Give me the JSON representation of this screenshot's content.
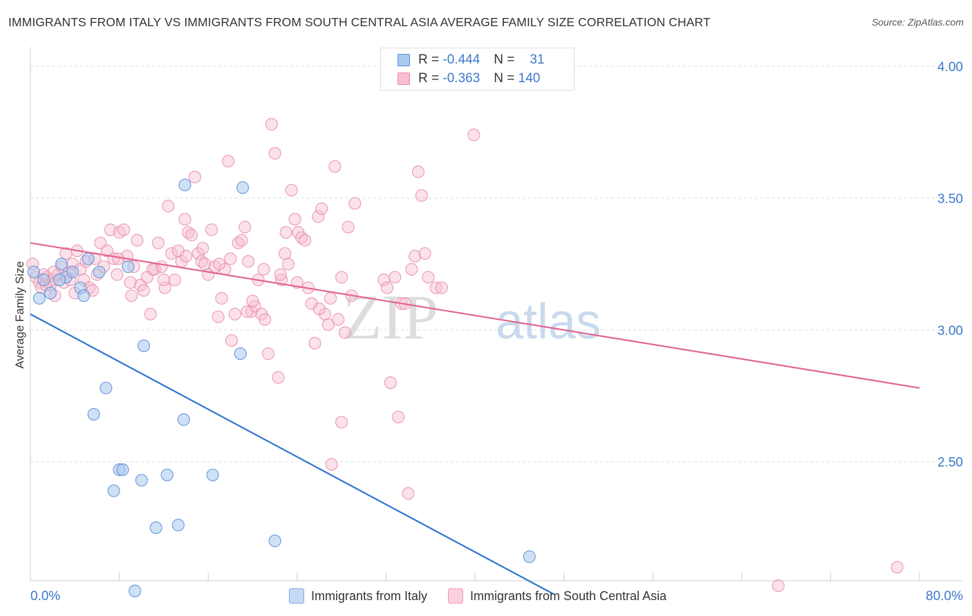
{
  "header": {
    "title": "IMMIGRANTS FROM ITALY VS IMMIGRANTS FROM SOUTH CENTRAL ASIA AVERAGE FAMILY SIZE CORRELATION CHART",
    "source": "Source: ZipAtlas.com"
  },
  "watermark": {
    "zip": "ZIP",
    "atlas": "atlas"
  },
  "legend": {
    "series1": {
      "r_label": "R =",
      "r_value": "-0.444",
      "n_label": "N =",
      "n_value": "31"
    },
    "series2": {
      "r_label": "R =",
      "r_value": "-0.363",
      "n_label": "N =",
      "n_value": "140"
    }
  },
  "colors": {
    "italy_fill": "#a9c8ee",
    "italy_stroke": "#5b8fd6",
    "italy_line": "#2f74d0",
    "asia_fill": "#f7bfd0",
    "asia_stroke": "#e88aa8",
    "asia_line": "#e06690",
    "axis_text": "#3a78c9",
    "grid": "#dddddd"
  },
  "chart_data": {
    "type": "scatter",
    "title": "IMMIGRANTS FROM ITALY VS IMMIGRANTS FROM SOUTH CENTRAL ASIA AVERAGE FAMILY SIZE CORRELATION CHART",
    "xlabel": "",
    "ylabel": "Average Family Size",
    "xlim": [
      0,
      80
    ],
    "ylim": [
      2.0,
      4.07
    ],
    "x_tick_labels": [
      "0.0%",
      "80.0%"
    ],
    "y_ticks": [
      2.5,
      3.0,
      3.5,
      4.0
    ],
    "y_tick_labels": [
      "2.50",
      "3.00",
      "3.50",
      "4.00"
    ],
    "grid": true,
    "series": [
      {
        "name": "Immigrants from Italy",
        "r": -0.444,
        "n": 31,
        "trend": {
          "x0": 0,
          "y0": 3.06,
          "x1": 47,
          "y1": 2.0
        },
        "points": [
          [
            0.3,
            3.22
          ],
          [
            0.8,
            3.12
          ],
          [
            1.8,
            3.14
          ],
          [
            2.8,
            3.25
          ],
          [
            3.2,
            3.2
          ],
          [
            3.8,
            3.22
          ],
          [
            4.5,
            3.16
          ],
          [
            4.8,
            3.13
          ],
          [
            5.2,
            3.27
          ],
          [
            6.2,
            3.22
          ],
          [
            6.8,
            2.78
          ],
          [
            5.7,
            2.68
          ],
          [
            8.8,
            3.24
          ],
          [
            10.2,
            2.94
          ],
          [
            13.9,
            3.55
          ],
          [
            19.1,
            3.54
          ],
          [
            13.8,
            2.66
          ],
          [
            18.9,
            2.91
          ],
          [
            8.0,
            2.47
          ],
          [
            8.3,
            2.47
          ],
          [
            7.5,
            2.39
          ],
          [
            10.0,
            2.43
          ],
          [
            12.3,
            2.45
          ],
          [
            16.4,
            2.45
          ],
          [
            11.3,
            2.25
          ],
          [
            13.3,
            2.26
          ],
          [
            22.0,
            2.2
          ],
          [
            9.4,
            2.01
          ],
          [
            44.9,
            2.14
          ],
          [
            1.2,
            3.19
          ],
          [
            2.6,
            3.19
          ]
        ]
      },
      {
        "name": "Immigrants from South Central Asia",
        "r": -0.363,
        "n": 140,
        "trend": {
          "x0": 0,
          "y0": 3.33,
          "x1": 80,
          "y1": 2.78
        },
        "points": [
          [
            0.2,
            3.25
          ],
          [
            0.5,
            3.2
          ],
          [
            0.8,
            3.18
          ],
          [
            1.0,
            3.16
          ],
          [
            1.2,
            3.21
          ],
          [
            1.5,
            3.2
          ],
          [
            1.8,
            3.17
          ],
          [
            2.0,
            3.19
          ],
          [
            2.2,
            3.13
          ],
          [
            2.5,
            3.21
          ],
          [
            2.8,
            3.24
          ],
          [
            3.0,
            3.18
          ],
          [
            3.2,
            3.29
          ],
          [
            3.5,
            3.22
          ],
          [
            3.8,
            3.25
          ],
          [
            4.0,
            3.14
          ],
          [
            4.2,
            3.3
          ],
          [
            4.5,
            3.23
          ],
          [
            4.8,
            3.19
          ],
          [
            5.0,
            3.26
          ],
          [
            5.3,
            3.16
          ],
          [
            5.6,
            3.15
          ],
          [
            6.0,
            3.21
          ],
          [
            6.3,
            3.33
          ],
          [
            6.6,
            3.24
          ],
          [
            6.9,
            3.3
          ],
          [
            7.2,
            3.38
          ],
          [
            7.5,
            3.27
          ],
          [
            7.8,
            3.21
          ],
          [
            8.0,
            3.37
          ],
          [
            8.4,
            3.38
          ],
          [
            8.7,
            3.28
          ],
          [
            9.0,
            3.18
          ],
          [
            9.3,
            3.24
          ],
          [
            9.6,
            3.34
          ],
          [
            9.9,
            3.17
          ],
          [
            10.2,
            3.15
          ],
          [
            10.5,
            3.2
          ],
          [
            10.8,
            3.06
          ],
          [
            11.2,
            3.23
          ],
          [
            11.5,
            3.33
          ],
          [
            11.8,
            3.24
          ],
          [
            12.1,
            3.16
          ],
          [
            12.4,
            3.47
          ],
          [
            12.7,
            3.29
          ],
          [
            13.0,
            3.19
          ],
          [
            13.3,
            3.3
          ],
          [
            13.6,
            3.26
          ],
          [
            13.9,
            3.42
          ],
          [
            14.2,
            3.37
          ],
          [
            14.5,
            3.36
          ],
          [
            14.8,
            3.58
          ],
          [
            15.1,
            3.29
          ],
          [
            15.4,
            3.26
          ],
          [
            15.7,
            3.25
          ],
          [
            16.0,
            3.21
          ],
          [
            16.3,
            3.38
          ],
          [
            16.6,
            3.24
          ],
          [
            16.9,
            3.05
          ],
          [
            17.2,
            3.12
          ],
          [
            17.5,
            3.23
          ],
          [
            17.8,
            3.64
          ],
          [
            18.1,
            2.96
          ],
          [
            18.4,
            3.06
          ],
          [
            18.7,
            3.33
          ],
          [
            19.0,
            3.34
          ],
          [
            19.3,
            3.39
          ],
          [
            19.6,
            3.26
          ],
          [
            19.9,
            3.07
          ],
          [
            20.2,
            3.09
          ],
          [
            20.5,
            3.19
          ],
          [
            20.8,
            3.06
          ],
          [
            21.1,
            3.04
          ],
          [
            21.4,
            2.91
          ],
          [
            21.7,
            3.78
          ],
          [
            22.0,
            3.67
          ],
          [
            22.3,
            2.82
          ],
          [
            22.6,
            3.19
          ],
          [
            22.9,
            3.29
          ],
          [
            23.2,
            3.25
          ],
          [
            23.5,
            3.53
          ],
          [
            23.8,
            3.42
          ],
          [
            24.1,
            3.37
          ],
          [
            24.4,
            3.35
          ],
          [
            24.7,
            3.34
          ],
          [
            25.0,
            3.16
          ],
          [
            25.3,
            3.1
          ],
          [
            25.6,
            2.95
          ],
          [
            25.9,
            3.43
          ],
          [
            26.2,
            3.46
          ],
          [
            26.5,
            3.06
          ],
          [
            26.8,
            3.02
          ],
          [
            27.1,
            2.49
          ],
          [
            27.4,
            3.62
          ],
          [
            27.7,
            3.04
          ],
          [
            28.0,
            2.65
          ],
          [
            28.3,
            2.99
          ],
          [
            28.6,
            3.39
          ],
          [
            28.9,
            3.13
          ],
          [
            29.2,
            3.48
          ],
          [
            31.8,
            3.19
          ],
          [
            32.1,
            3.16
          ],
          [
            32.4,
            2.8
          ],
          [
            32.8,
            3.2
          ],
          [
            33.1,
            2.67
          ],
          [
            33.4,
            3.1
          ],
          [
            33.7,
            3.1
          ],
          [
            34.0,
            2.38
          ],
          [
            34.3,
            3.23
          ],
          [
            34.6,
            3.28
          ],
          [
            34.9,
            3.6
          ],
          [
            35.2,
            3.51
          ],
          [
            35.5,
            3.29
          ],
          [
            35.8,
            3.2
          ],
          [
            36.5,
            3.16
          ],
          [
            37.0,
            3.16
          ],
          [
            39.9,
            3.74
          ],
          [
            67.3,
            2.03
          ],
          [
            78.0,
            2.1
          ],
          [
            1.4,
            3.17
          ],
          [
            2.1,
            3.22
          ],
          [
            3.6,
            3.19
          ],
          [
            5.8,
            3.27
          ],
          [
            7.9,
            3.27
          ],
          [
            9.1,
            3.13
          ],
          [
            11.0,
            3.23
          ],
          [
            12.0,
            3.19
          ],
          [
            14.0,
            3.28
          ],
          [
            15.5,
            3.31
          ],
          [
            17.0,
            3.25
          ],
          [
            18.0,
            3.27
          ],
          [
            19.5,
            3.07
          ],
          [
            20.0,
            3.11
          ],
          [
            21.0,
            3.23
          ],
          [
            22.5,
            3.21
          ],
          [
            23.0,
            3.37
          ],
          [
            24.0,
            3.18
          ],
          [
            26.0,
            3.08
          ],
          [
            27.0,
            3.12
          ],
          [
            28.0,
            3.2
          ]
        ]
      }
    ]
  },
  "bottom_legend": {
    "items": [
      {
        "label": "Immigrants from Italy"
      },
      {
        "label": "Immigrants from South Central Asia"
      }
    ]
  }
}
